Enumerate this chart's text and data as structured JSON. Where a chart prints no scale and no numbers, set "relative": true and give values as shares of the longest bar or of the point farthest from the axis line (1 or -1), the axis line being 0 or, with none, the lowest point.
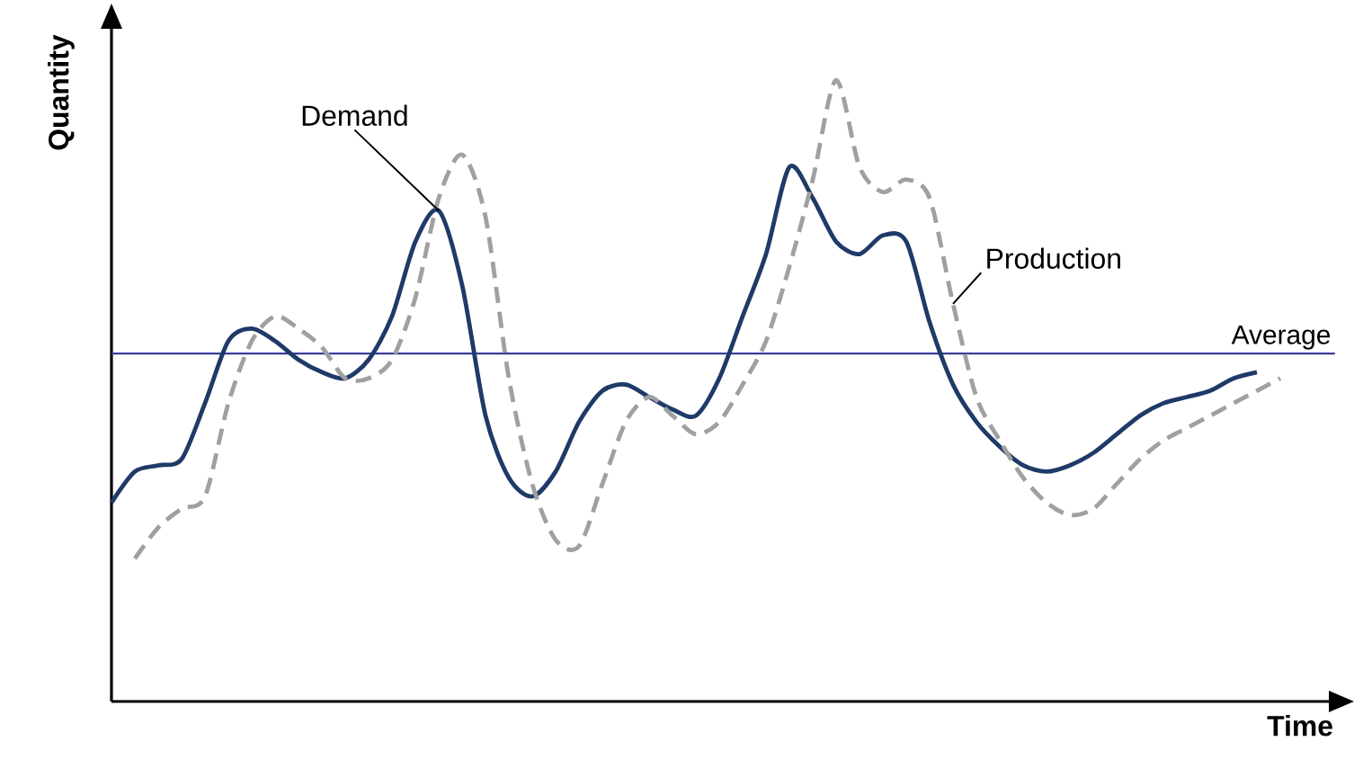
{
  "chart_data": {
    "type": "line",
    "relative": true,
    "xlabel": "Time",
    "ylabel": "Quantity",
    "tick_labels": false,
    "categories": [
      null,
      null,
      null,
      null,
      null,
      null,
      null,
      null,
      null,
      null,
      null,
      null,
      null,
      null,
      null,
      null,
      null,
      null,
      null,
      null,
      null,
      null,
      null,
      null,
      null,
      null,
      null,
      null,
      null,
      null,
      null,
      null,
      null,
      null,
      null,
      null,
      null,
      null,
      null,
      null,
      null,
      null,
      null,
      null,
      null,
      null,
      null,
      null,
      null,
      null,
      null
    ],
    "series": [
      {
        "name": "Demand",
        "color": "#1f3a68",
        "line_style": "solid",
        "values": [
          0.32,
          0.37,
          0.38,
          0.39,
          0.48,
          0.58,
          0.6,
          0.58,
          0.55,
          0.53,
          0.52,
          0.55,
          0.62,
          0.74,
          0.79,
          0.67,
          0.46,
          0.36,
          0.33,
          0.37,
          0.45,
          0.5,
          0.51,
          0.49,
          0.47,
          0.46,
          0.52,
          0.62,
          0.72,
          0.86,
          0.81,
          0.74,
          0.72,
          0.75,
          0.74,
          0.61,
          0.51,
          0.45,
          0.41,
          0.38,
          0.37,
          0.38,
          0.4,
          0.43,
          0.46,
          0.48,
          0.49,
          0.5,
          0.52,
          0.53,
          null
        ]
      },
      {
        "name": "Production",
        "color": "#a0a0a0",
        "line_style": "dashed",
        "values": [
          null,
          0.23,
          0.28,
          0.31,
          0.33,
          0.48,
          0.58,
          0.62,
          0.6,
          0.57,
          0.52,
          0.52,
          0.55,
          0.65,
          0.81,
          0.88,
          0.78,
          0.52,
          0.35,
          0.26,
          0.25,
          0.35,
          0.45,
          0.49,
          0.46,
          0.43,
          0.45,
          0.51,
          0.58,
          0.7,
          0.84,
          1.0,
          0.86,
          0.82,
          0.84,
          0.81,
          0.64,
          0.49,
          0.42,
          0.36,
          0.32,
          0.3,
          0.31,
          0.35,
          0.39,
          0.42,
          0.44,
          0.46,
          0.48,
          0.5,
          0.52
        ]
      }
    ],
    "ref_lines": [
      {
        "axis": "y",
        "value": 0.56,
        "label": "Average",
        "color": "#3c3c9c"
      }
    ]
  }
}
